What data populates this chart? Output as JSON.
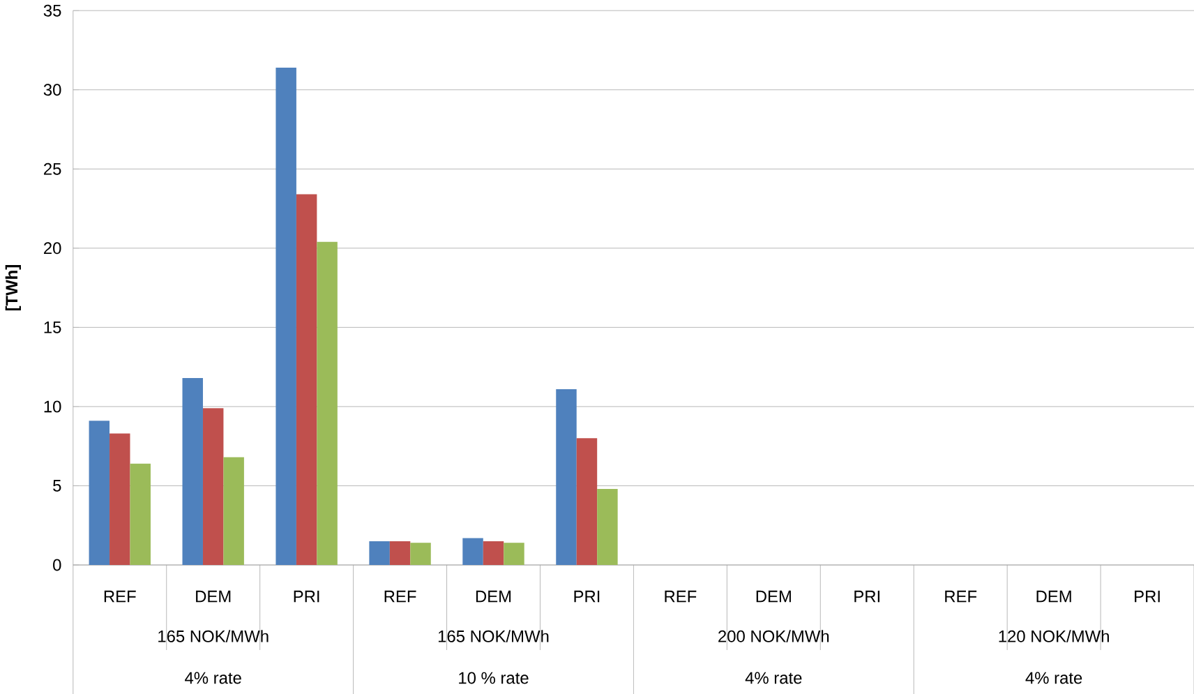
{
  "chart_data": {
    "type": "bar",
    "ylabel": "[TWh]",
    "categories": [
      "REF",
      "DEM",
      "PRI",
      "REF",
      "DEM",
      "PRI",
      "REF",
      "DEM",
      "PRI",
      "REF",
      "DEM",
      "PRI"
    ],
    "series": [
      {
        "color": "#4f81bd",
        "values": [
          9.1,
          11.8,
          31.4,
          1.5,
          1.7,
          11.1,
          null,
          null,
          null,
          null,
          null,
          null
        ]
      },
      {
        "color": "#c0504d",
        "values": [
          8.3,
          9.9,
          23.4,
          1.5,
          1.5,
          8.0,
          null,
          null,
          null,
          null,
          null,
          null
        ]
      },
      {
        "color": "#9bbb59",
        "values": [
          6.4,
          6.8,
          20.4,
          1.4,
          1.4,
          4.8,
          null,
          null,
          null,
          null,
          null,
          null
        ]
      }
    ],
    "annotations": [
      "165 NOK/MWh",
      "4% rate",
      "165 NOK/MWh",
      "10 % rate",
      "200 NOK/MWh",
      "4% rate",
      "120 NOK/MWh",
      "4% rate"
    ],
    "ylim": [
      0,
      35
    ],
    "yticks": [
      0,
      5,
      10,
      15,
      20,
      25,
      30,
      35
    ],
    "grid": "y"
  }
}
